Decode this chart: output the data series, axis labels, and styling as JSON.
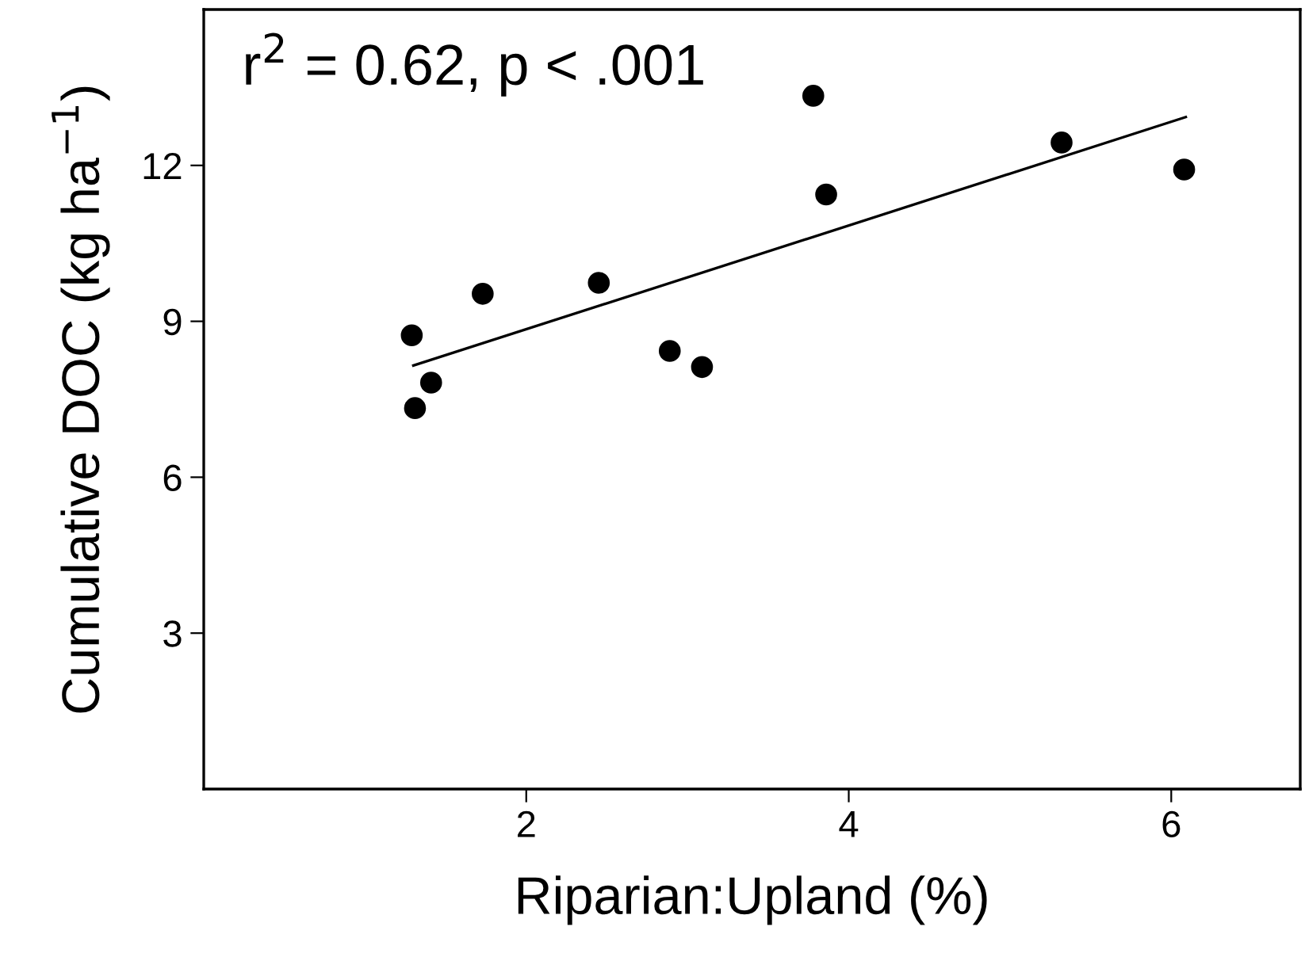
{
  "chart_data": {
    "type": "scatter",
    "xlabel": "Riparian:Upland (%)",
    "ylabel": "Cumulative DOC (kg ha$^{−1}$)",
    "annotations": [
      "r$^{2}$ = 0.62, p < .001"
    ],
    "xlim": [
      0,
      6.8
    ],
    "ylim": [
      0,
      15
    ],
    "xticks": [
      2,
      4,
      6
    ],
    "yticks": [
      3,
      6,
      9,
      12
    ],
    "grid": false,
    "legend": false,
    "marker": "circle",
    "series": [
      {
        "color": "#000000",
        "x": [
          1.29,
          1.31,
          1.41,
          1.73,
          2.45,
          2.89,
          3.09,
          3.78,
          3.86,
          5.32,
          6.08
        ],
        "values": [
          8.73,
          7.33,
          7.82,
          9.53,
          9.74,
          8.43,
          8.12,
          13.34,
          11.44,
          12.44,
          11.92
        ]
      },
      {
        "type": "line",
        "color": "#000000",
        "line_style": "solid",
        "marker": "none",
        "x": [
          1.3,
          6.09
        ],
        "values": [
          8.15,
          12.93
        ]
      }
    ]
  }
}
